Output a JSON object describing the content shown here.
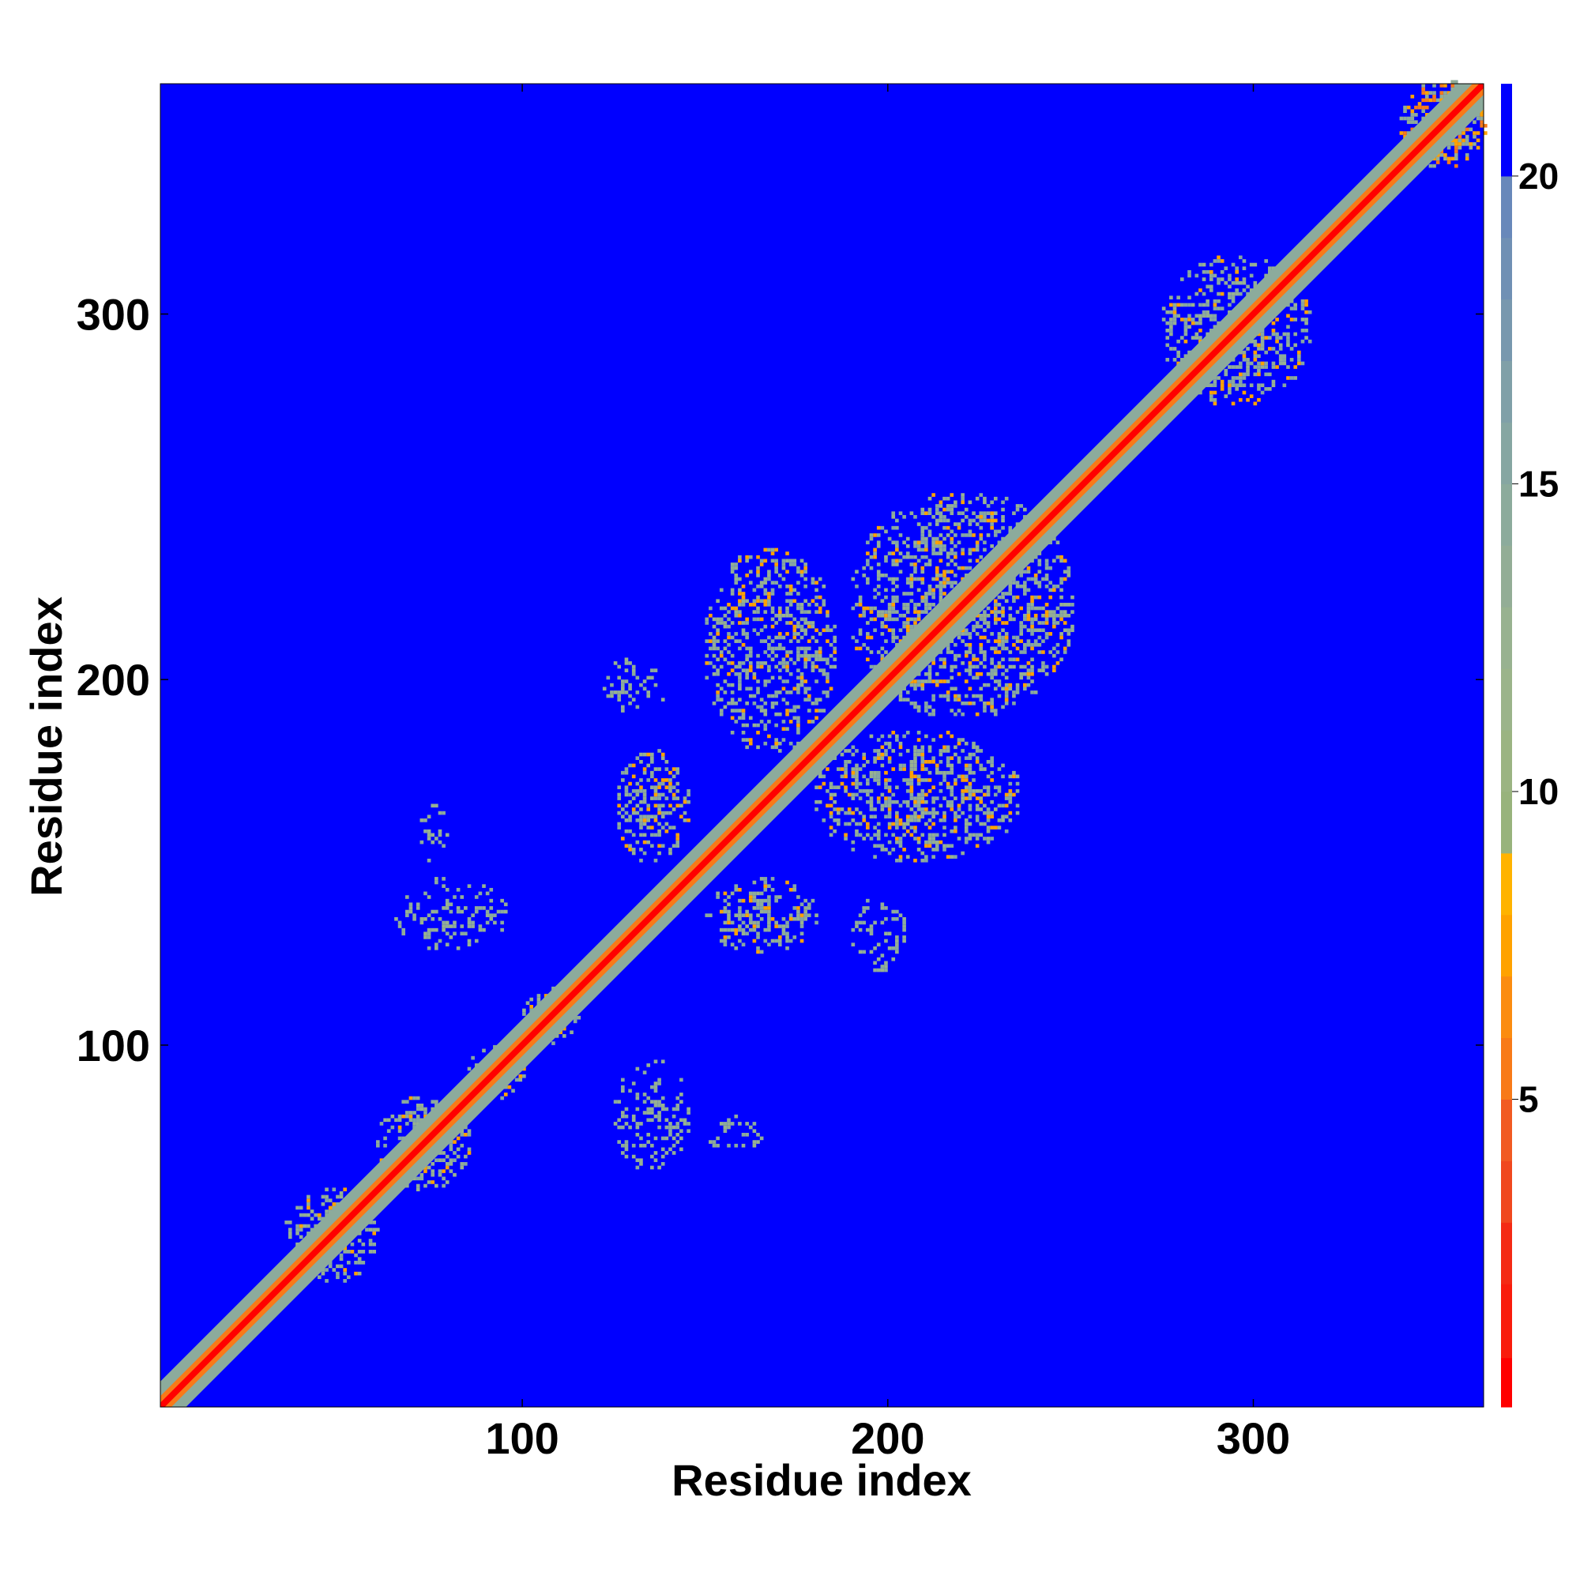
{
  "chart_data": {
    "type": "heatmap",
    "title": "",
    "xlabel": "Residue index",
    "ylabel": "Residue index",
    "xlim": [
      1,
      363
    ],
    "ylim": [
      1,
      363
    ],
    "x_ticks": [
      100,
      200,
      300
    ],
    "y_ticks": [
      100,
      200,
      300
    ],
    "colorbar": {
      "range": [
        0,
        21.5
      ],
      "ticks": [
        5,
        10,
        15,
        20
      ],
      "colors": [
        {
          "min": 0.0,
          "max": 0.8,
          "color": "#ff0000"
        },
        {
          "min": 0.8,
          "max": 2.0,
          "color": "#f91c0c"
        },
        {
          "min": 2.0,
          "max": 3.0,
          "color": "#f42a14"
        },
        {
          "min": 3.0,
          "max": 4.0,
          "color": "#f0481e"
        },
        {
          "min": 4.0,
          "max": 5.0,
          "color": "#f15a22"
        },
        {
          "min": 5.0,
          "max": 6.0,
          "color": "#f87a18"
        },
        {
          "min": 6.0,
          "max": 7.0,
          "color": "#fb8c10"
        },
        {
          "min": 7.0,
          "max": 8.0,
          "color": "#ffa200"
        },
        {
          "min": 8.0,
          "max": 9.0,
          "color": "#ffb300"
        },
        {
          "min": 9.0,
          "max": 10.0,
          "color": "#98b37c"
        },
        {
          "min": 10.0,
          "max": 11.0,
          "color": "#9bb482"
        },
        {
          "min": 11.0,
          "max": 12.0,
          "color": "#9bb48a"
        },
        {
          "min": 12.0,
          "max": 13.0,
          "color": "#98b290"
        },
        {
          "min": 13.0,
          "max": 14.0,
          "color": "#93ad96"
        },
        {
          "min": 14.0,
          "max": 15.0,
          "color": "#8cab9c"
        },
        {
          "min": 15.0,
          "max": 16.0,
          "color": "#86a6a2"
        },
        {
          "min": 16.0,
          "max": 17.0,
          "color": "#80a0a8"
        },
        {
          "min": 17.0,
          "max": 18.0,
          "color": "#7898ae"
        },
        {
          "min": 18.0,
          "max": 19.0,
          "color": "#7090b4"
        },
        {
          "min": 19.0,
          "max": 20.0,
          "color": "#6888ba"
        },
        {
          "min": 20.0,
          "max": 21.5,
          "color": "#0000ff"
        }
      ]
    },
    "background_value": 21,
    "background_color": "#0000ff",
    "diagonal": {
      "core_color": "#ff0000",
      "inner_color": "#f87a18",
      "halo_color": "#8cab9c"
    },
    "contact_regions": [
      {
        "x": [
          340,
          363
        ],
        "y": [
          340,
          363
        ],
        "level": "strong"
      },
      {
        "x": [
          275,
          315
        ],
        "y": [
          275,
          315
        ],
        "level": "medium"
      },
      {
        "x": [
          190,
          250
        ],
        "y": [
          190,
          250
        ],
        "level": "medium"
      },
      {
        "x": [
          150,
          185
        ],
        "y": [
          180,
          235
        ],
        "level": "medium"
      },
      {
        "x": [
          180,
          235
        ],
        "y": [
          150,
          185
        ],
        "level": "medium"
      },
      {
        "x": [
          125,
          145
        ],
        "y": [
          150,
          180
        ],
        "level": "medium"
      },
      {
        "x": [
          150,
          180
        ],
        "y": [
          125,
          145
        ],
        "level": "medium"
      },
      {
        "x": [
          120,
          140
        ],
        "y": [
          190,
          205
        ],
        "level": "weak"
      },
      {
        "x": [
          190,
          205
        ],
        "y": [
          120,
          140
        ],
        "level": "weak"
      },
      {
        "x": [
          65,
          95
        ],
        "y": [
          125,
          145
        ],
        "level": "weak"
      },
      {
        "x": [
          125,
          145
        ],
        "y": [
          65,
          95
        ],
        "level": "weak"
      },
      {
        "x": [
          70,
          80
        ],
        "y": [
          150,
          165
        ],
        "level": "weak"
      },
      {
        "x": [
          150,
          165
        ],
        "y": [
          70,
          80
        ],
        "level": "weak"
      },
      {
        "x": [
          35,
          60
        ],
        "y": [
          35,
          60
        ],
        "level": "medium"
      },
      {
        "x": [
          60,
          85
        ],
        "y": [
          60,
          85
        ],
        "level": "medium"
      },
      {
        "x": [
          85,
          100
        ],
        "y": [
          85,
          100
        ],
        "level": "medium"
      },
      {
        "x": [
          100,
          115
        ],
        "y": [
          100,
          115
        ],
        "level": "medium"
      }
    ]
  }
}
